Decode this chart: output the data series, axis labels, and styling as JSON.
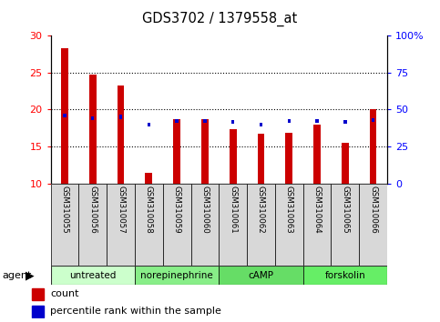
{
  "title": "GDS3702 / 1379558_at",
  "samples": [
    "GSM310055",
    "GSM310056",
    "GSM310057",
    "GSM310058",
    "GSM310059",
    "GSM310060",
    "GSM310061",
    "GSM310062",
    "GSM310063",
    "GSM310064",
    "GSM310065",
    "GSM310066"
  ],
  "count_values": [
    28.3,
    24.7,
    23.2,
    11.4,
    18.7,
    18.7,
    17.3,
    16.7,
    16.8,
    17.9,
    15.5,
    20.0
  ],
  "percentile_values": [
    46,
    44,
    45,
    40,
    42,
    42,
    41.5,
    40,
    42,
    42.5,
    41.5,
    43
  ],
  "count_base": 10,
  "ylim_left": [
    10,
    30
  ],
  "ylim_right": [
    0,
    100
  ],
  "yticks_left": [
    10,
    15,
    20,
    25,
    30
  ],
  "yticks_right": [
    0,
    25,
    50,
    75,
    100
  ],
  "ytick_labels_left": [
    "10",
    "15",
    "20",
    "25",
    "30"
  ],
  "ytick_labels_right": [
    "0",
    "25",
    "50",
    "75",
    "100%"
  ],
  "bar_color": "#cc0000",
  "percentile_color": "#0000cc",
  "agent_groups": [
    {
      "label": "untreated",
      "start": 0,
      "end": 3,
      "color": "#ccffcc"
    },
    {
      "label": "norepinephrine",
      "start": 3,
      "end": 6,
      "color": "#88ee88"
    },
    {
      "label": "cAMP",
      "start": 6,
      "end": 9,
      "color": "#66dd66"
    },
    {
      "label": "forskolin",
      "start": 9,
      "end": 12,
      "color": "#66ee66"
    }
  ],
  "xlabel": "",
  "ylabel_left": "",
  "ylabel_right": "",
  "legend_count_label": "count",
  "legend_percentile_label": "percentile rank within the sample",
  "background_color": "#ffffff",
  "agent_label": "agent",
  "bar_width": 0.25,
  "grid_yticks": [
    15,
    20,
    25
  ]
}
